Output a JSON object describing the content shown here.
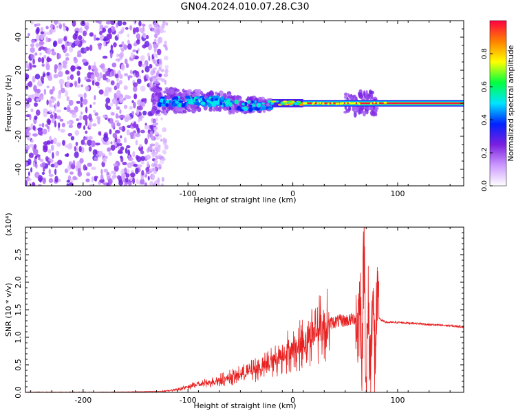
{
  "page_title": "GN04.2024.010.07.28.C30",
  "colors": {
    "snr_line": "#e82020",
    "band_center": "#e8105a",
    "axis": "#000000"
  },
  "chart_data": [
    {
      "type": "heatmap",
      "title": "GN04.2024.010.07.28.C30",
      "xlabel": "Height of straight line (km)",
      "ylabel": "Frequency (Hz)",
      "xlim": [
        -255,
        163
      ],
      "ylim": [
        -50,
        50
      ],
      "x_ticks": [
        -200,
        -100,
        0,
        100
      ],
      "y_ticks": [
        -40,
        -20,
        0,
        20,
        40
      ],
      "colorbar": {
        "label": "Normalized spectral amplitude",
        "range": [
          0.0,
          1.0
        ],
        "ticks": [
          0.0,
          0.2,
          0.4,
          0.6,
          0.8
        ],
        "tick_labels": [
          "0.0",
          "0.2",
          "0.4",
          "0.6",
          "0.8"
        ],
        "colormap": [
          "#ffffff",
          "#cc99ff",
          "#7a1fe0",
          "#0022ff",
          "#00e5ff",
          "#00ff40",
          "#ffff00",
          "#ff8000",
          "#ff0040"
        ]
      },
      "regions": [
        {
          "name": "broadband-noise",
          "x_range": [
            -255,
            -125
          ],
          "f_range": [
            -50,
            50
          ],
          "level": 0.2
        },
        {
          "name": "noisy-band",
          "x_range": [
            -135,
            -20
          ],
          "f_range": [
            -8,
            8
          ],
          "level": 0.45
        },
        {
          "name": "converging-band",
          "x_range": [
            -20,
            10
          ],
          "f_range": [
            -2,
            3
          ],
          "level": 0.75
        },
        {
          "name": "steady-band",
          "x_range": [
            10,
            163
          ],
          "f_range": [
            -1,
            1
          ],
          "level": 1.0
        },
        {
          "name": "disturbance",
          "x_range": [
            50,
            80
          ],
          "f_range": [
            -10,
            12
          ],
          "level": 0.35
        }
      ]
    },
    {
      "type": "line",
      "xlabel": "Height of straight line (km)",
      "ylabel": "SNR (10 * v/v)",
      "multiplier": "(x10⁴)",
      "xlim": [
        -255,
        163
      ],
      "ylim": [
        0,
        3.0
      ],
      "x_ticks": [
        -200,
        -100,
        0,
        100
      ],
      "y_ticks": [
        0.0,
        0.5,
        1.0,
        1.5,
        2.0,
        2.5
      ],
      "y_tick_labels": [
        "0.0",
        "0.5",
        "1.0",
        "1.5",
        "2.0",
        "2.5"
      ],
      "series": [
        {
          "x": [
            -255,
            -200,
            -150,
            -125,
            -110,
            -100,
            -90,
            -80,
            -70,
            -60,
            -50,
            -40,
            -30,
            -20,
            -15,
            -10,
            -5,
            0,
            5,
            10,
            15,
            20,
            25,
            30,
            35,
            40,
            45,
            50,
            55,
            60,
            62,
            64,
            66,
            68,
            70,
            72,
            74,
            76,
            78,
            80,
            85,
            90,
            100,
            110,
            120,
            130,
            140,
            150,
            163
          ],
          "y": [
            0.0,
            0.0,
            0.01,
            0.02,
            0.05,
            0.1,
            0.14,
            0.18,
            0.22,
            0.27,
            0.32,
            0.38,
            0.45,
            0.55,
            0.62,
            0.7,
            0.75,
            0.78,
            0.82,
            0.9,
            1.0,
            1.08,
            1.15,
            1.2,
            1.25,
            1.28,
            1.3,
            1.3,
            1.32,
            1.35,
            1.15,
            1.7,
            0.8,
            2.8,
            0.3,
            1.5,
            0.4,
            1.9,
            0.6,
            1.4,
            1.3,
            1.27,
            1.27,
            1.26,
            1.25,
            1.23,
            1.22,
            1.21,
            1.19
          ]
        }
      ]
    }
  ]
}
